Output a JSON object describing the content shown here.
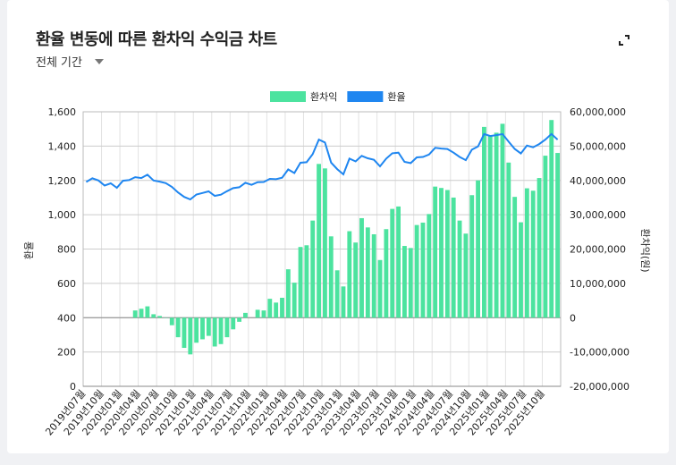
{
  "title": "환율 변동에 따른 환차익 수익금 차트",
  "period_select": {
    "value": "전체 기간"
  },
  "icons": {
    "expand": "fullscreen-expand-icon",
    "dropdown": "caret-down-icon"
  },
  "chart_data": {
    "type": "bar+line",
    "legend": {
      "position": "top",
      "entries": [
        "환차익",
        "환율"
      ]
    },
    "colors": {
      "환차익": "#4ce39f",
      "환율": "#1f86f0"
    },
    "grid": true,
    "y_left": {
      "label": "환율",
      "range": [
        0,
        1600
      ],
      "ticks": [
        "0",
        "200",
        "400",
        "600",
        "800",
        "1,000",
        "1,200",
        "1,400",
        "1,600"
      ]
    },
    "y_right": {
      "label": "환차익(원)",
      "range": [
        -20000000,
        60000000
      ],
      "ticks": [
        "-20,000,000",
        "-10,000,000",
        "0",
        "10,000,000",
        "20,000,000",
        "30,000,000",
        "40,000,000",
        "50,000,000",
        "60,000,000"
      ]
    },
    "categories": [
      "2019년07월",
      "2019년08월",
      "2019년09월",
      "2019년10월",
      "2019년11월",
      "2019년12월",
      "2020년01월",
      "2020년02월",
      "2020년03월",
      "2020년04월",
      "2020년05월",
      "2020년06월",
      "2020년07월",
      "2020년08월",
      "2020년09월",
      "2020년10월",
      "2020년11월",
      "2020년12월",
      "2021년01월",
      "2021년02월",
      "2021년03월",
      "2021년04월",
      "2021년05월",
      "2021년06월",
      "2021년07월",
      "2021년08월",
      "2021년09월",
      "2021년10월",
      "2021년11월",
      "2021년12월",
      "2022년01월",
      "2022년02월",
      "2022년03월",
      "2022년04월",
      "2022년05월",
      "2022년06월",
      "2022년07월",
      "2022년08월",
      "2022년09월",
      "2022년10월",
      "2022년11월",
      "2022년12월",
      "2023년01월",
      "2023년02월",
      "2023년03월",
      "2023년04월",
      "2023년05월",
      "2023년06월",
      "2023년07월",
      "2023년08월",
      "2023년09월",
      "2023년10월",
      "2023년11월",
      "2023년12월",
      "2024년01월",
      "2024년02월",
      "2024년03월",
      "2024년04월",
      "2024년05월",
      "2024년06월",
      "2024년07월",
      "2024년08월",
      "2024년09월",
      "2024년10월",
      "2024년11월",
      "2024년12월",
      "2025년01월",
      "2025년02월",
      "2025년03월",
      "2025년04월",
      "2025년05월",
      "2025년06월",
      "2025년07월",
      "2025년08월",
      "2025년09월",
      "2025년10월",
      "2025년11월",
      "2025년12월"
    ],
    "tick_every": 3,
    "series": [
      {
        "name": "환차익",
        "type": "bar",
        "axis": "right",
        "values": [
          0,
          0,
          0,
          0,
          0,
          0,
          0,
          0,
          2100000,
          2600000,
          3300000,
          1000000,
          500000,
          -100000,
          -2200000,
          -5700000,
          -8800000,
          -10700000,
          -7300000,
          -6300000,
          -5300000,
          -8400000,
          -7700000,
          -5700000,
          -3400000,
          -1200000,
          1400000,
          0,
          2300000,
          2100000,
          5500000,
          4400000,
          5800000,
          14100000,
          10200000,
          20600000,
          21100000,
          28300000,
          44800000,
          43500000,
          23700000,
          13800000,
          9100000,
          25200000,
          21900000,
          29000000,
          26300000,
          24300000,
          16800000,
          25800000,
          31700000,
          32400000,
          20900000,
          20300000,
          27000000,
          27700000,
          30200000,
          38200000,
          37800000,
          37200000,
          35000000,
          28300000,
          24500000,
          35700000,
          40000000,
          55600000,
          52900000,
          53900000,
          56500000,
          45200000,
          35200000,
          27800000,
          37700000,
          37000000,
          40700000,
          47200000,
          57600000,
          48000000
        ]
      },
      {
        "name": "환율",
        "type": "line",
        "axis": "left",
        "values": [
          1191,
          1212,
          1200,
          1170,
          1183,
          1157,
          1198,
          1202,
          1219,
          1214,
          1233,
          1200,
          1193,
          1184,
          1162,
          1130,
          1104,
          1089,
          1118,
          1127,
          1136,
          1110,
          1117,
          1137,
          1155,
          1160,
          1186,
          1174,
          1190,
          1191,
          1209,
          1207,
          1216,
          1264,
          1243,
          1303,
          1306,
          1353,
          1438,
          1421,
          1304,
          1266,
          1235,
          1327,
          1311,
          1343,
          1329,
          1320,
          1282,
          1327,
          1358,
          1362,
          1308,
          1301,
          1334,
          1337,
          1351,
          1390,
          1386,
          1383,
          1362,
          1337,
          1318,
          1379,
          1398,
          1470,
          1459,
          1464,
          1470,
          1426,
          1383,
          1357,
          1403,
          1393,
          1412,
          1438,
          1471,
          1438
        ]
      }
    ]
  }
}
